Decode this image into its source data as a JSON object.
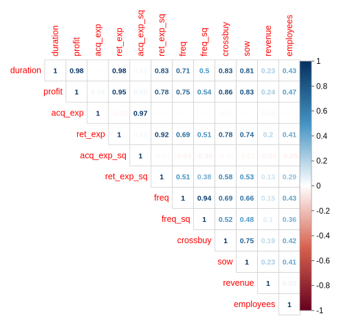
{
  "chart_data": {
    "type": "heatmap",
    "subtype": "correlation-matrix-upper",
    "variables": [
      "duration",
      "profit",
      "acq_exp",
      "ret_exp",
      "acq_exp_sq",
      "ret_exp_sq",
      "freq",
      "freq_sq",
      "crossbuy",
      "sow",
      "revenue",
      "employees"
    ],
    "matrix": [
      [
        1,
        0.98,
        0.01,
        0.98,
        0.03,
        0.83,
        0.71,
        0.5,
        0.83,
        0.81,
        0.23,
        0.43
      ],
      [
        null,
        1,
        0.04,
        0.95,
        0.05,
        0.78,
        0.75,
        0.54,
        0.86,
        0.83,
        0.24,
        0.47
      ],
      [
        null,
        null,
        1,
        -0.03,
        0.97,
        -0.01,
        0.01,
        0.01,
        -0.02,
        0.01,
        0.03,
        -0.01
      ],
      [
        null,
        null,
        null,
        1,
        0.03,
        0.92,
        0.69,
        0.51,
        0.78,
        0.74,
        0.2,
        0.41
      ],
      [
        null,
        null,
        null,
        null,
        1,
        -0.02,
        -0.04,
        -0.05,
        -0.02,
        -0.03,
        -0.04,
        -0.05
      ],
      [
        null,
        null,
        null,
        null,
        null,
        1,
        0.51,
        0.38,
        0.58,
        0.53,
        0.13,
        0.29
      ],
      [
        null,
        null,
        null,
        null,
        null,
        null,
        1,
        0.94,
        0.69,
        0.66,
        0.15,
        0.43
      ],
      [
        null,
        null,
        null,
        null,
        null,
        null,
        null,
        1,
        0.52,
        0.48,
        0.1,
        0.36
      ],
      [
        null,
        null,
        null,
        null,
        null,
        null,
        null,
        null,
        1,
        0.75,
        0.19,
        0.42
      ],
      [
        null,
        null,
        null,
        null,
        null,
        null,
        null,
        null,
        null,
        1,
        0.23,
        0.41
      ],
      [
        null,
        null,
        null,
        null,
        null,
        null,
        null,
        null,
        null,
        null,
        1,
        0.05
      ],
      [
        null,
        null,
        null,
        null,
        null,
        null,
        null,
        null,
        null,
        null,
        null,
        1
      ]
    ],
    "value_range": [
      -1,
      1
    ],
    "colorbar": {
      "ticks": [
        1,
        0.8,
        0.6,
        0.4,
        0.2,
        0,
        -0.2,
        -0.4,
        -0.6,
        -0.8,
        -1
      ],
      "tick_labels": [
        "1",
        "0.8",
        "0.6",
        "0.4",
        "0.2",
        "0",
        "-0.2",
        "-0.4",
        "-0.6",
        "-0.8",
        "-1"
      ],
      "colors": {
        "-1": "#67001F",
        "-0.5": "#D6604D",
        "0": "#FFFFFF",
        "0.5": "#4393C3",
        "1": "#053061"
      }
    },
    "label_color": "#FF0000",
    "grid": true
  }
}
